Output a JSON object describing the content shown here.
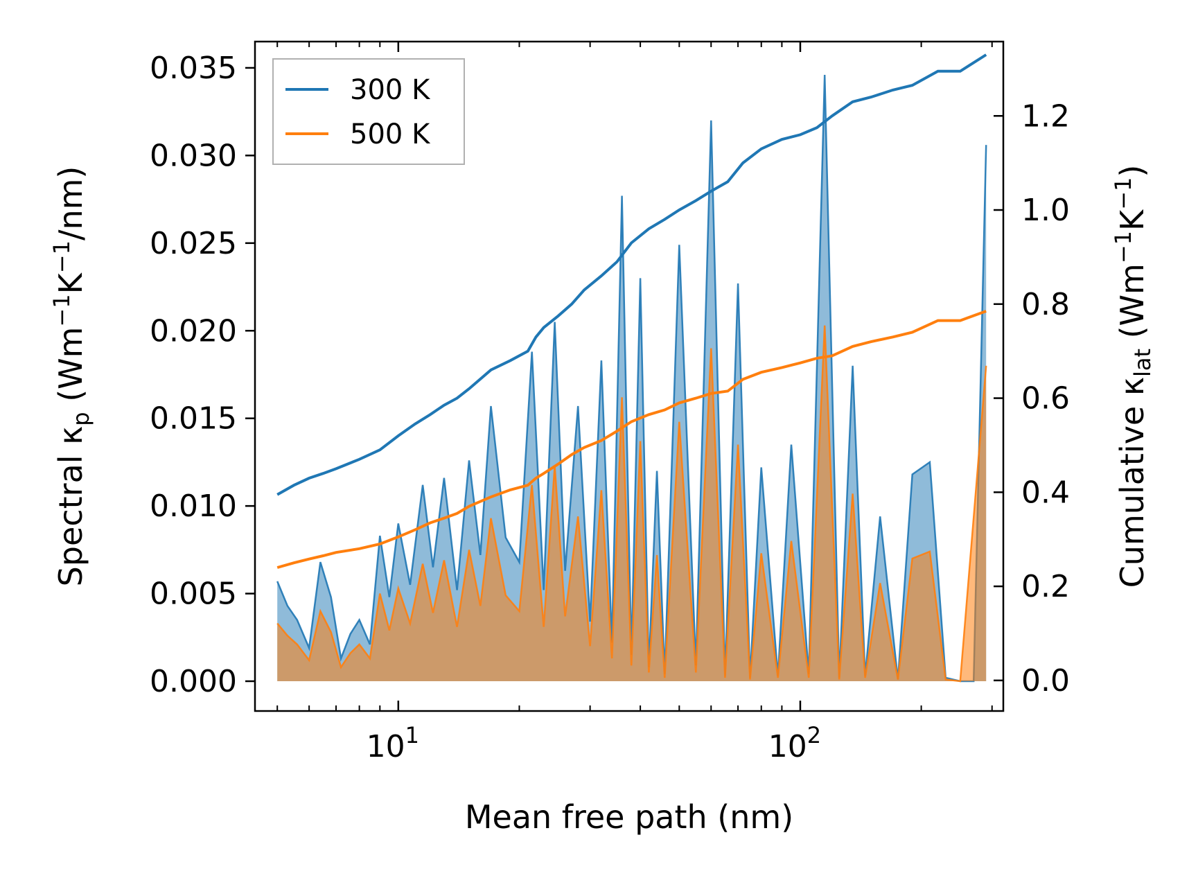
{
  "chart_data": {
    "type": "line",
    "xscale": "log",
    "xlim": [
      4.4,
      320
    ],
    "xlabel": "Mean free path (nm)",
    "x_major_ticks": [
      {
        "value": 10,
        "base": "10",
        "exp": "1"
      },
      {
        "value": 100,
        "base": "10",
        "exp": "2"
      }
    ],
    "ylabel_left": {
      "pre": "Spectral κ",
      "sub": "p",
      "mid": " (Wm",
      "sup1": "−1",
      "k": "K",
      "sup2": "−1",
      "post": "/nm)"
    },
    "ylabel_right": {
      "pre": "Cumulative κ",
      "sub": "lat",
      "mid": " (Wm",
      "sup1": "−1",
      "k": "K",
      "sup2": "−1",
      "post": ")"
    },
    "ylim_left": [
      -0.0017,
      0.0365
    ],
    "ylim_right": [
      -0.065,
      1.358
    ],
    "yticks_left": [
      "0.000",
      "0.005",
      "0.010",
      "0.015",
      "0.020",
      "0.025",
      "0.030",
      "0.035"
    ],
    "yticks_left_values": [
      0,
      0.005,
      0.01,
      0.015,
      0.02,
      0.025,
      0.03,
      0.035
    ],
    "yticks_right": [
      "0.0",
      "0.2",
      "0.4",
      "0.6",
      "0.8",
      "1.0",
      "1.2"
    ],
    "yticks_right_values": [
      0,
      0.2,
      0.4,
      0.6,
      0.8,
      1.0,
      1.2
    ],
    "legend": {
      "position": "top-left",
      "entries": [
        "300 K",
        "500 K"
      ]
    },
    "series": [
      {
        "name": "300 K",
        "color": "#1f77b4",
        "cumulative": {
          "x": [
            5.0,
            5.5,
            6.0,
            6.5,
            7.0,
            8.0,
            9.0,
            10.0,
            11.0,
            12.0,
            13.0,
            14.0,
            15.0,
            17.0,
            19.0,
            21.0,
            22.0,
            23.0,
            25.0,
            27.0,
            29.0,
            32.0,
            35.0,
            38.0,
            42.0,
            46.0,
            50.0,
            55.0,
            60.0,
            66.0,
            72.0,
            80.0,
            90.0,
            100.0,
            110.0,
            120.0,
            135.0,
            150.0,
            170.0,
            190.0,
            220.0,
            250.0,
            290.0
          ],
          "y": [
            0.395,
            0.415,
            0.43,
            0.44,
            0.45,
            0.47,
            0.49,
            0.52,
            0.545,
            0.565,
            0.585,
            0.6,
            0.62,
            0.66,
            0.68,
            0.7,
            0.73,
            0.75,
            0.775,
            0.8,
            0.83,
            0.86,
            0.89,
            0.93,
            0.96,
            0.98,
            1.0,
            1.02,
            1.04,
            1.06,
            1.1,
            1.13,
            1.15,
            1.16,
            1.175,
            1.2,
            1.23,
            1.24,
            1.255,
            1.265,
            1.295,
            1.295,
            1.33
          ]
        },
        "spectral": {
          "x": [
            5.0,
            5.3,
            5.6,
            6.0,
            6.4,
            6.8,
            7.2,
            7.6,
            8.0,
            8.5,
            9.0,
            9.5,
            10.0,
            10.7,
            11.5,
            12.2,
            13.0,
            14.0,
            15.0,
            16.0,
            17.0,
            18.5,
            20.0,
            21.5,
            23.0,
            24.5,
            26.0,
            28.0,
            30.0,
            32.0,
            34.0,
            36.0,
            38.0,
            40.0,
            42.0,
            44.0,
            46.0,
            50.0,
            55.0,
            60.0,
            65.0,
            70.0,
            75.0,
            80.0,
            88.0,
            95.0,
            105.0,
            115.0,
            125.0,
            135.0,
            145.0,
            158.0,
            175.0,
            190.0,
            210.0,
            230.0,
            250.0,
            270.0,
            290.0
          ],
          "y": [
            0.0057,
            0.0043,
            0.0035,
            0.0019,
            0.0068,
            0.0048,
            0.0013,
            0.0027,
            0.0035,
            0.0021,
            0.0083,
            0.0048,
            0.009,
            0.0055,
            0.0112,
            0.0065,
            0.0116,
            0.0052,
            0.0126,
            0.0072,
            0.0157,
            0.0082,
            0.0068,
            0.0188,
            0.0052,
            0.0205,
            0.0063,
            0.0157,
            0.0034,
            0.0183,
            0.0022,
            0.0277,
            0.0015,
            0.023,
            0.0008,
            0.012,
            0.0004,
            0.0249,
            0.0009,
            0.032,
            0.0003,
            0.0227,
            0.0002,
            0.0122,
            0.0003,
            0.0135,
            0.0004,
            0.0346,
            0.0002,
            0.018,
            0.0003,
            0.0094,
            0.0001,
            0.0118,
            0.0125,
            0.0002,
            0.0,
            0.0,
            0.0306
          ]
        }
      },
      {
        "name": "500 K",
        "color": "#ff7f0e",
        "cumulative": {
          "x": [
            5.0,
            5.5,
            6.0,
            6.5,
            7.0,
            8.0,
            9.0,
            10.0,
            11.0,
            12.0,
            13.0,
            14.0,
            15.0,
            17.0,
            19.0,
            21.0,
            22.0,
            23.0,
            25.0,
            27.0,
            29.0,
            32.0,
            35.0,
            38.0,
            42.0,
            46.0,
            50.0,
            55.0,
            60.0,
            66.0,
            72.0,
            80.0,
            90.0,
            100.0,
            110.0,
            120.0,
            135.0,
            150.0,
            170.0,
            190.0,
            220.0,
            250.0,
            290.0
          ],
          "y": [
            0.24,
            0.25,
            0.258,
            0.265,
            0.272,
            0.28,
            0.29,
            0.305,
            0.32,
            0.335,
            0.345,
            0.355,
            0.37,
            0.39,
            0.405,
            0.415,
            0.43,
            0.44,
            0.46,
            0.48,
            0.495,
            0.51,
            0.53,
            0.55,
            0.565,
            0.575,
            0.59,
            0.6,
            0.61,
            0.615,
            0.64,
            0.655,
            0.665,
            0.675,
            0.685,
            0.69,
            0.71,
            0.72,
            0.73,
            0.74,
            0.765,
            0.765,
            0.785
          ]
        },
        "spectral": {
          "x": [
            5.0,
            5.3,
            5.6,
            6.0,
            6.4,
            6.8,
            7.2,
            7.6,
            8.0,
            8.5,
            9.0,
            9.5,
            10.0,
            10.7,
            11.5,
            12.2,
            13.0,
            14.0,
            15.0,
            16.0,
            17.0,
            18.5,
            20.0,
            21.5,
            23.0,
            24.5,
            26.0,
            28.0,
            30.0,
            32.0,
            34.0,
            36.0,
            38.0,
            40.0,
            42.0,
            44.0,
            46.0,
            50.0,
            55.0,
            60.0,
            65.0,
            70.0,
            75.0,
            80.0,
            88.0,
            95.0,
            105.0,
            115.0,
            125.0,
            135.0,
            145.0,
            158.0,
            175.0,
            190.0,
            210.0,
            230.0,
            250.0,
            290.0
          ],
          "y": [
            0.0033,
            0.0026,
            0.0021,
            0.0012,
            0.004,
            0.0028,
            0.0008,
            0.0016,
            0.0021,
            0.0013,
            0.005,
            0.0029,
            0.0053,
            0.0033,
            0.0067,
            0.0039,
            0.0069,
            0.0031,
            0.0075,
            0.0043,
            0.0093,
            0.0049,
            0.004,
            0.0112,
            0.0031,
            0.0123,
            0.0037,
            0.0094,
            0.002,
            0.0109,
            0.0013,
            0.0162,
            0.0009,
            0.0137,
            0.0005,
            0.0072,
            0.0002,
            0.0148,
            0.0005,
            0.019,
            0.0002,
            0.0135,
            0.0001,
            0.0073,
            0.0002,
            0.008,
            0.0002,
            0.0203,
            0.0001,
            0.0107,
            0.0002,
            0.0056,
            0.0001,
            0.007,
            0.0074,
            0.0001,
            0.0,
            0.018
          ]
        }
      }
    ]
  }
}
